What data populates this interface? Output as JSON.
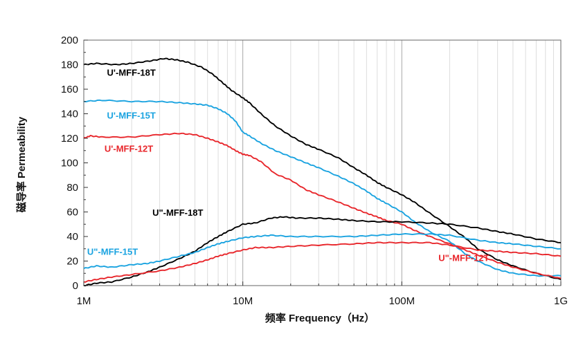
{
  "chart_data": {
    "type": "line",
    "title": "",
    "xlabel": "频率 Frequency（Hz）",
    "ylabel": "磁导率 Permeability",
    "xscale": "log",
    "xlim": [
      1000000,
      1000000000
    ],
    "ylim": [
      0,
      200
    ],
    "x_ticks": [
      {
        "value": 1000000,
        "label": "1M"
      },
      {
        "value": 10000000,
        "label": "10M"
      },
      {
        "value": 100000000,
        "label": "100M"
      },
      {
        "value": 1000000000,
        "label": "1G"
      }
    ],
    "y_ticks": [
      0,
      20,
      40,
      60,
      80,
      100,
      120,
      140,
      160,
      180,
      200
    ],
    "grid": "vertical major and minor lines",
    "series": [
      {
        "name": "U'-MFF-18T",
        "color": "#000000",
        "points": [
          [
            1000000,
            180
          ],
          [
            1200000,
            181
          ],
          [
            1600000,
            180
          ],
          [
            2000000,
            181
          ],
          [
            2600000,
            183
          ],
          [
            3200000,
            185
          ],
          [
            3800000,
            184
          ],
          [
            4500000,
            182
          ],
          [
            5500000,
            178
          ],
          [
            6500000,
            172
          ],
          [
            7500000,
            165
          ],
          [
            8500000,
            159
          ],
          [
            10000000,
            153
          ],
          [
            11000000,
            149
          ],
          [
            13000000,
            140
          ],
          [
            16000000,
            130
          ],
          [
            20000000,
            122
          ],
          [
            25000000,
            115
          ],
          [
            30000000,
            111
          ],
          [
            40000000,
            104
          ],
          [
            50000000,
            96
          ],
          [
            60000000,
            90
          ],
          [
            70000000,
            84
          ],
          [
            80000000,
            80
          ],
          [
            100000000,
            74
          ],
          [
            120000000,
            68
          ],
          [
            150000000,
            59
          ],
          [
            200000000,
            48
          ],
          [
            250000000,
            39
          ],
          [
            300000000,
            30
          ],
          [
            400000000,
            21
          ],
          [
            500000000,
            16
          ],
          [
            700000000,
            10
          ],
          [
            1000000000,
            5
          ]
        ]
      },
      {
        "name": "U'-MFF-15T",
        "color": "#1aa3e0",
        "points": [
          [
            1000000,
            150
          ],
          [
            1300000,
            151
          ],
          [
            2000000,
            150
          ],
          [
            3000000,
            150
          ],
          [
            4000000,
            149
          ],
          [
            5000000,
            148
          ],
          [
            6000000,
            147
          ],
          [
            7000000,
            144
          ],
          [
            8000000,
            140
          ],
          [
            9000000,
            134
          ],
          [
            10000000,
            125
          ],
          [
            11000000,
            122
          ],
          [
            13000000,
            116
          ],
          [
            16000000,
            110
          ],
          [
            20000000,
            105
          ],
          [
            25000000,
            100
          ],
          [
            30000000,
            96
          ],
          [
            40000000,
            89
          ],
          [
            50000000,
            83
          ],
          [
            60000000,
            77
          ],
          [
            70000000,
            71
          ],
          [
            80000000,
            67
          ],
          [
            100000000,
            60
          ],
          [
            120000000,
            52
          ],
          [
            150000000,
            44
          ],
          [
            200000000,
            36
          ],
          [
            250000000,
            26
          ],
          [
            300000000,
            20
          ],
          [
            400000000,
            13
          ],
          [
            500000000,
            10
          ],
          [
            700000000,
            8
          ],
          [
            1000000000,
            8
          ]
        ]
      },
      {
        "name": "U'-MFF-12T",
        "color": "#e8262b",
        "points": [
          [
            1000000,
            120
          ],
          [
            1100000,
            122
          ],
          [
            1300000,
            121
          ],
          [
            2000000,
            121
          ],
          [
            3000000,
            123
          ],
          [
            4000000,
            124
          ],
          [
            5000000,
            123
          ],
          [
            6000000,
            120
          ],
          [
            7000000,
            117
          ],
          [
            8000000,
            114
          ],
          [
            9000000,
            110
          ],
          [
            10000000,
            107
          ],
          [
            11000000,
            106
          ],
          [
            13000000,
            101
          ],
          [
            16000000,
            91
          ],
          [
            20000000,
            86
          ],
          [
            25000000,
            78
          ],
          [
            30000000,
            74
          ],
          [
            40000000,
            68
          ],
          [
            50000000,
            63
          ],
          [
            60000000,
            59
          ],
          [
            70000000,
            56
          ],
          [
            80000000,
            53
          ],
          [
            100000000,
            50
          ],
          [
            120000000,
            45
          ],
          [
            150000000,
            40
          ],
          [
            200000000,
            34
          ],
          [
            250000000,
            29
          ],
          [
            300000000,
            25
          ],
          [
            400000000,
            19
          ],
          [
            500000000,
            15
          ],
          [
            700000000,
            10
          ],
          [
            1000000000,
            6
          ]
        ]
      },
      {
        "name": "U\"-MFF-18T",
        "color": "#000000",
        "points": [
          [
            1000000,
            0
          ],
          [
            1200000,
            2
          ],
          [
            1500000,
            3
          ],
          [
            2000000,
            7
          ],
          [
            2500000,
            11
          ],
          [
            3000000,
            15
          ],
          [
            4000000,
            22
          ],
          [
            5000000,
            28
          ],
          [
            6000000,
            35
          ],
          [
            7000000,
            40
          ],
          [
            8000000,
            44
          ],
          [
            10000000,
            50
          ],
          [
            12000000,
            51
          ],
          [
            15000000,
            55
          ],
          [
            18000000,
            56
          ],
          [
            22000000,
            55
          ],
          [
            30000000,
            55
          ],
          [
            40000000,
            54
          ],
          [
            50000000,
            53
          ],
          [
            70000000,
            52
          ],
          [
            100000000,
            52
          ],
          [
            150000000,
            51
          ],
          [
            200000000,
            50
          ],
          [
            300000000,
            47
          ],
          [
            400000000,
            44
          ],
          [
            500000000,
            42
          ],
          [
            700000000,
            38
          ],
          [
            1000000000,
            35
          ]
        ]
      },
      {
        "name": "U\"-MFF-15T",
        "color": "#1aa3e0",
        "points": [
          [
            1000000,
            14
          ],
          [
            1200000,
            16
          ],
          [
            1500000,
            15
          ],
          [
            2000000,
            17
          ],
          [
            2500000,
            18
          ],
          [
            3000000,
            20
          ],
          [
            4000000,
            24
          ],
          [
            5000000,
            27
          ],
          [
            6000000,
            31
          ],
          [
            7000000,
            34
          ],
          [
            8000000,
            36
          ],
          [
            10000000,
            39
          ],
          [
            12000000,
            40
          ],
          [
            15000000,
            41
          ],
          [
            20000000,
            40
          ],
          [
            30000000,
            40
          ],
          [
            50000000,
            40
          ],
          [
            70000000,
            41
          ],
          [
            100000000,
            42
          ],
          [
            150000000,
            42
          ],
          [
            200000000,
            41
          ],
          [
            300000000,
            37
          ],
          [
            400000000,
            35
          ],
          [
            500000000,
            34
          ],
          [
            700000000,
            32
          ],
          [
            1000000000,
            30
          ]
        ]
      },
      {
        "name": "U\"-MFF-12T",
        "color": "#e8262b",
        "points": [
          [
            1000000,
            3
          ],
          [
            1200000,
            5
          ],
          [
            1500000,
            7
          ],
          [
            2000000,
            9
          ],
          [
            3000000,
            12
          ],
          [
            4000000,
            15
          ],
          [
            5000000,
            18
          ],
          [
            6000000,
            21
          ],
          [
            7000000,
            24
          ],
          [
            8000000,
            26
          ],
          [
            10000000,
            29
          ],
          [
            12000000,
            31
          ],
          [
            15000000,
            31
          ],
          [
            20000000,
            32
          ],
          [
            30000000,
            33
          ],
          [
            50000000,
            34
          ],
          [
            70000000,
            35
          ],
          [
            100000000,
            35
          ],
          [
            150000000,
            35
          ],
          [
            200000000,
            33
          ],
          [
            300000000,
            29
          ],
          [
            400000000,
            28
          ],
          [
            500000000,
            27
          ],
          [
            700000000,
            26
          ],
          [
            1000000000,
            24
          ]
        ]
      }
    ],
    "annotations": [
      {
        "text": "U'-MFF-18T",
        "color": "#000000",
        "at": [
          1400000,
          171
        ]
      },
      {
        "text": "U'-MFF-15T",
        "color": "#1aa3e0",
        "at": [
          1400000,
          136
        ]
      },
      {
        "text": "U'-MFF-12T",
        "color": "#e8262b",
        "at": [
          1350000,
          109
        ]
      },
      {
        "text": "U\"-MFF-18T",
        "color": "#000000",
        "at": [
          2700000,
          57
        ]
      },
      {
        "text": "U\"-MFF-15T",
        "color": "#1aa3e0",
        "at": [
          1050000,
          25
        ]
      },
      {
        "text": "U\"-MFF-12T",
        "color": "#e8262b",
        "at": [
          170000000,
          20
        ]
      }
    ]
  }
}
